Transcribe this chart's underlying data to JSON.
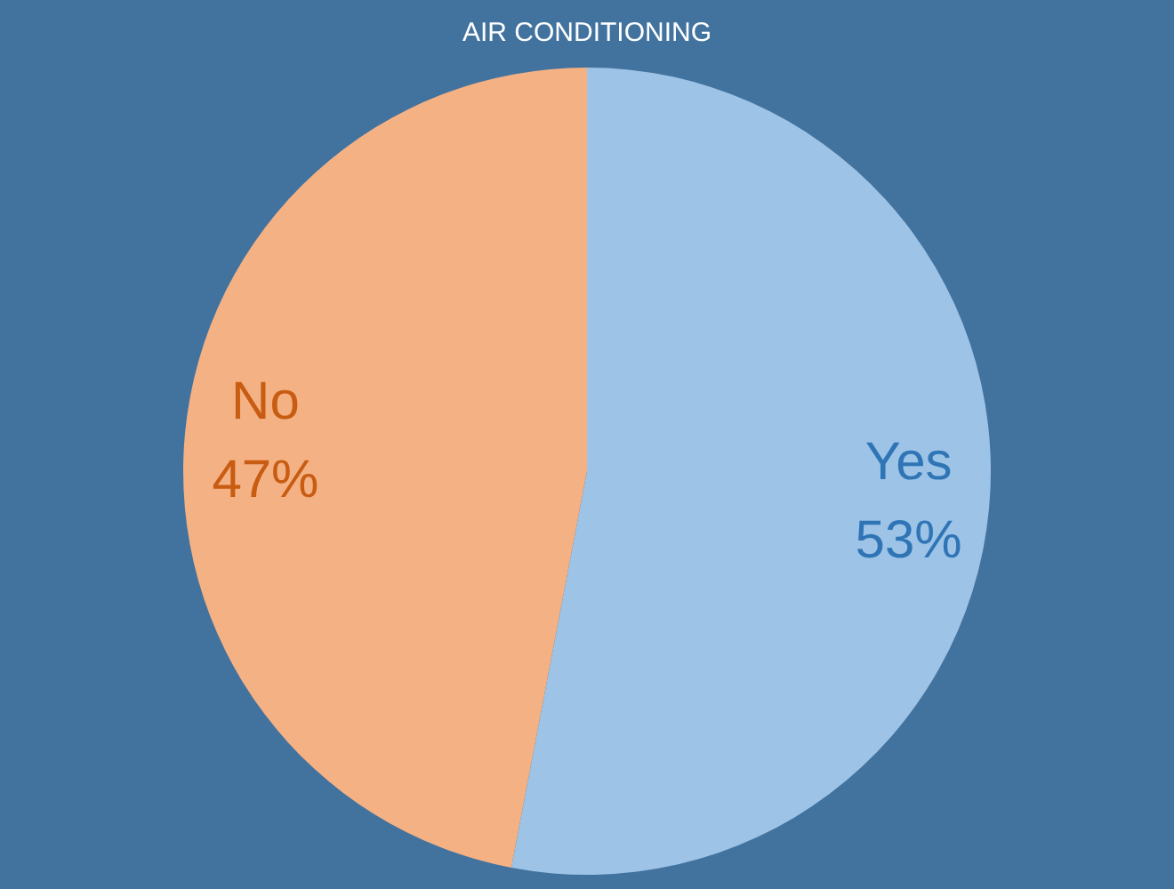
{
  "chart_data": {
    "type": "pie",
    "title": "AIR CONDITIONING",
    "categories": [
      "Yes",
      "No"
    ],
    "values": [
      53,
      47
    ],
    "colors": [
      "#9dc3e6",
      "#f4b183"
    ],
    "value_labels": [
      "53%",
      "47%"
    ]
  }
}
